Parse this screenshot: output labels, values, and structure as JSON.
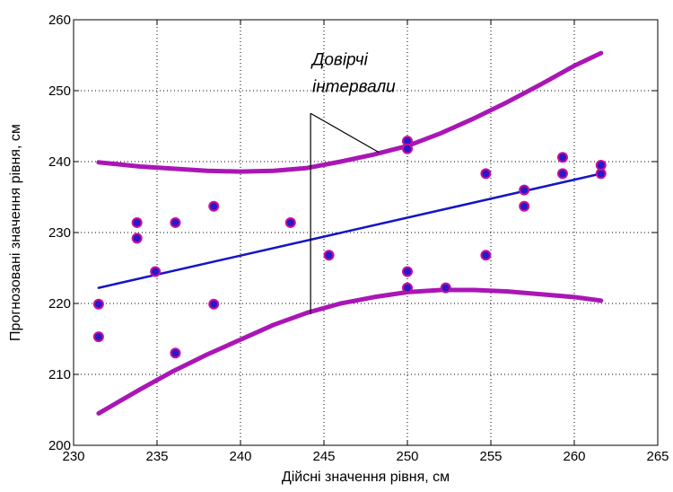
{
  "chart_data": {
    "type": "scatter",
    "title": "",
    "xlabel": "Дійсні значення рівня, см",
    "ylabel": "Прогнозовані значення рівня, см",
    "xlim": [
      230,
      265
    ],
    "ylim": [
      200,
      260
    ],
    "xticks": [
      230,
      235,
      240,
      245,
      250,
      255,
      260,
      265
    ],
    "yticks": [
      200,
      210,
      220,
      230,
      240,
      250,
      260
    ],
    "grid": true,
    "annotation": {
      "lines": [
        "Довірчі",
        "інтервали"
      ]
    },
    "colors": {
      "points_face": "#2a17c8",
      "points_edge": "#c8109e",
      "regression": "#1414c8",
      "interval": "#aa16b6"
    },
    "series": [
      {
        "kind": "points",
        "x": [
          231.5,
          231.5,
          233.8,
          233.8,
          234.9,
          236.1,
          236.1,
          238.4,
          238.4,
          243.0,
          245.3,
          250.0,
          250.0,
          250.0,
          250.0,
          252.3,
          254.7,
          254.7,
          257.0,
          257.0,
          259.3,
          259.3,
          261.6,
          261.6
        ],
        "y": [
          219.9,
          215.3,
          231.4,
          229.2,
          224.5,
          231.4,
          213.0,
          233.7,
          219.9,
          231.4,
          226.8,
          242.9,
          241.8,
          224.5,
          222.2,
          222.2,
          238.3,
          226.8,
          236.0,
          233.7,
          240.6,
          238.3,
          238.3,
          239.5
        ]
      },
      {
        "kind": "regression",
        "x": [
          231.5,
          261.6
        ],
        "y": [
          222.2,
          238.3
        ]
      },
      {
        "kind": "upper-interval",
        "x": [
          231.5,
          234,
          236,
          238,
          240,
          242,
          244,
          246,
          248,
          250,
          252,
          254,
          256,
          258,
          260,
          261.6
        ],
        "y": [
          239.9,
          239.3,
          239.0,
          238.7,
          238.6,
          238.7,
          239.1,
          240.0,
          241.0,
          242.2,
          244.0,
          246.1,
          248.4,
          250.9,
          253.5,
          255.3
        ]
      },
      {
        "kind": "lower-interval",
        "x": [
          231.5,
          234,
          236,
          238,
          240,
          242,
          244,
          246,
          248,
          250,
          252,
          254,
          256,
          258,
          260,
          261.6
        ],
        "y": [
          204.5,
          207.9,
          210.5,
          212.8,
          214.9,
          217.0,
          218.7,
          220.0,
          220.9,
          221.6,
          221.9,
          221.9,
          221.7,
          221.3,
          220.9,
          220.4
        ]
      }
    ]
  }
}
